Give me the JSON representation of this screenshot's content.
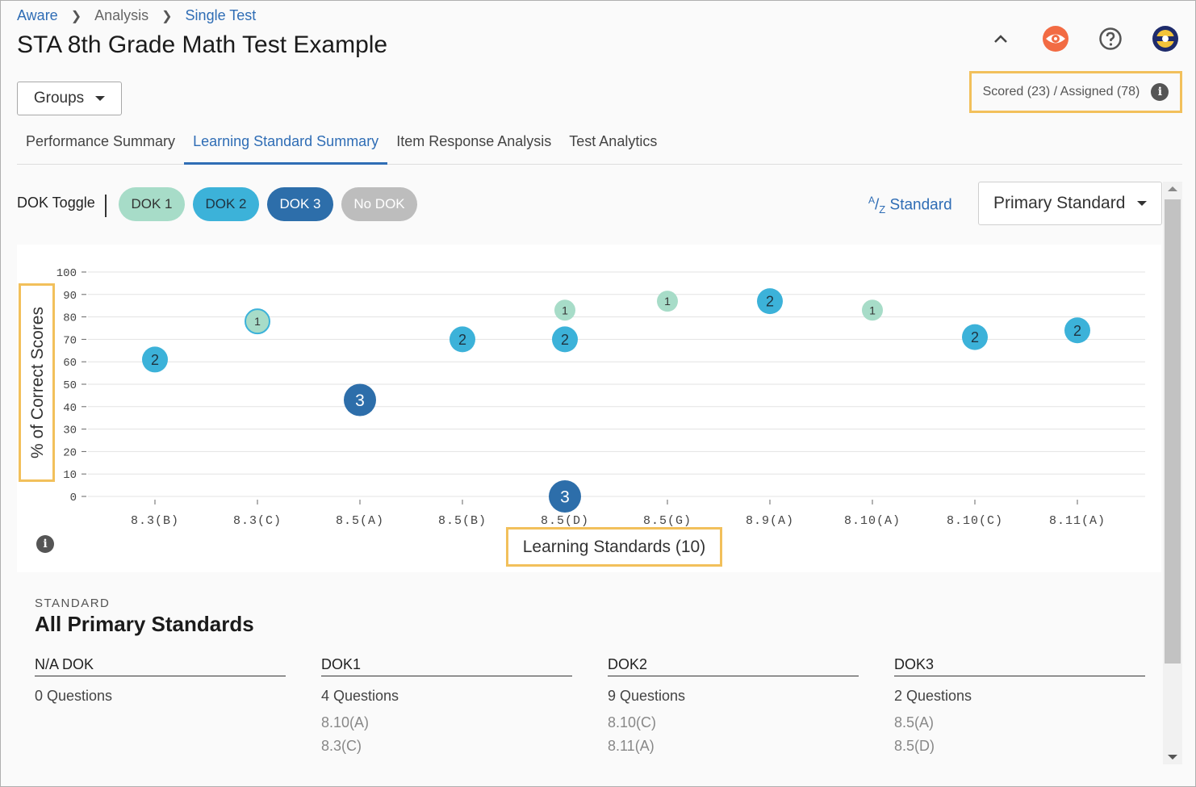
{
  "breadcrumb": {
    "root": "Aware",
    "middle": "Analysis",
    "current": "Single Test"
  },
  "page_title": "STA 8th Grade Math Test Example",
  "header_icons": [
    "chevron-up-icon",
    "eye-icon",
    "help-icon",
    "avatar"
  ],
  "groups_button": "Groups",
  "scored_assigned": "Scored (23) / Assigned (78)",
  "tabs": [
    {
      "label": "Performance Summary",
      "active": false
    },
    {
      "label": "Learning Standard Summary",
      "active": true
    },
    {
      "label": "Item Response Analysis",
      "active": false
    },
    {
      "label": "Test Analytics",
      "active": false
    }
  ],
  "dok_toggle": {
    "label": "DOK Toggle",
    "chips": [
      "DOK 1",
      "DOK 2",
      "DOK 3",
      "No DOK"
    ]
  },
  "sort_button": {
    "sup": "A",
    "slash": "/",
    "sub": "Z",
    "label": " Standard"
  },
  "primary_select": "Primary Standard",
  "colors": {
    "dok1": "#a7dcc8",
    "dok2": "#3cb2d9",
    "dok3": "#2d6eaa",
    "nodok": "#bdbdbd",
    "accent": "#2f6db5",
    "highlight": "#f2c05b"
  },
  "chart_data": {
    "type": "scatter",
    "ylabel": "% of Correct Scores",
    "xlabel": "Learning Standards (10)",
    "ylim": [
      0,
      100
    ],
    "yticks": [
      0,
      10,
      20,
      30,
      40,
      50,
      60,
      70,
      80,
      90,
      100
    ],
    "categories": [
      "8.3(B)",
      "8.3(C)",
      "8.5(A)",
      "8.5(B)",
      "8.5(D)",
      "8.5(G)",
      "8.9(A)",
      "8.10(A)",
      "8.10(C)",
      "8.11(A)"
    ],
    "grid": true,
    "points": [
      {
        "x": "8.3(B)",
        "y": 61,
        "dok": 2
      },
      {
        "x": "8.3(C)",
        "y": 78,
        "dok": 1
      },
      {
        "x": "8.5(A)",
        "y": 43,
        "dok": 3
      },
      {
        "x": "8.5(B)",
        "y": 70,
        "dok": 2
      },
      {
        "x": "8.5(D)",
        "y": 83,
        "dok": 1
      },
      {
        "x": "8.5(D)",
        "y": 70,
        "dok": 2
      },
      {
        "x": "8.5(D)",
        "y": 0,
        "dok": 3
      },
      {
        "x": "8.5(G)",
        "y": 87,
        "dok": 1
      },
      {
        "x": "8.9(A)",
        "y": 87,
        "dok": 2
      },
      {
        "x": "8.10(A)",
        "y": 83,
        "dok": 1
      },
      {
        "x": "8.10(C)",
        "y": 71,
        "dok": 2
      },
      {
        "x": "8.11(A)",
        "y": 74,
        "dok": 2
      }
    ]
  },
  "summary": {
    "caption": "STANDARD",
    "title": "All Primary Standards",
    "columns": [
      {
        "head": "N/A DOK",
        "count": "0 Questions",
        "items": []
      },
      {
        "head": "DOK1",
        "count": "4 Questions",
        "items": [
          "8.10(A)",
          "8.3(C)"
        ]
      },
      {
        "head": "DOK2",
        "count": "9 Questions",
        "items": [
          "8.10(C)",
          "8.11(A)"
        ]
      },
      {
        "head": "DOK3",
        "count": "2 Questions",
        "items": [
          "8.5(A)",
          "8.5(D)"
        ]
      }
    ]
  }
}
